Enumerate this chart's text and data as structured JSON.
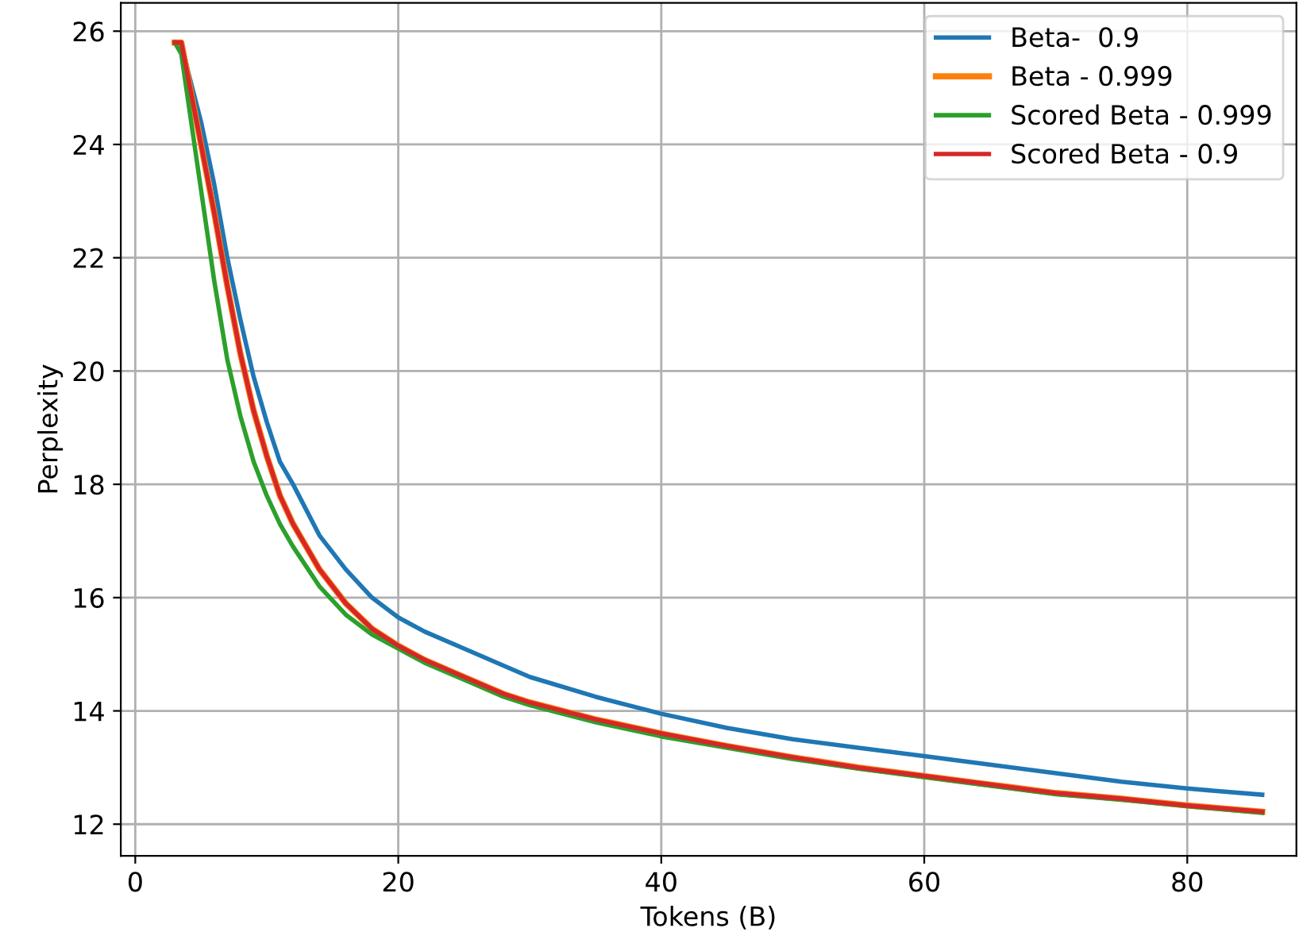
{
  "chart_data": {
    "type": "line",
    "xlabel": "Tokens (B)",
    "ylabel": "Perplexity",
    "x": [
      3,
      3.5,
      4,
      5,
      6,
      7,
      8,
      9,
      10,
      11,
      12,
      14,
      16,
      18,
      20,
      22,
      25,
      28,
      30,
      35,
      40,
      45,
      50,
      55,
      60,
      65,
      70,
      75,
      80,
      85.7
    ],
    "series": [
      {
        "name": "Beta-  0.9",
        "color": "#1f77b4",
        "values": [
          25.8,
          25.8,
          25.3,
          24.4,
          23.3,
          22.0,
          20.9,
          19.9,
          19.1,
          18.4,
          18.0,
          17.1,
          16.5,
          16.0,
          15.65,
          15.4,
          15.1,
          14.8,
          14.6,
          14.25,
          13.95,
          13.7,
          13.5,
          13.35,
          13.2,
          13.05,
          12.9,
          12.75,
          12.63,
          12.52
        ]
      },
      {
        "name": "Beta - 0.999",
        "color": "#ff7f0e",
        "values": [
          25.8,
          25.8,
          25.2,
          24.0,
          22.8,
          21.5,
          20.3,
          19.3,
          18.5,
          17.8,
          17.3,
          16.5,
          15.9,
          15.45,
          15.15,
          14.9,
          14.6,
          14.3,
          14.15,
          13.85,
          13.6,
          13.38,
          13.18,
          13.0,
          12.85,
          12.7,
          12.55,
          12.45,
          12.33,
          12.22
        ]
      },
      {
        "name": "Scored Beta - 0.999",
        "color": "#2ca02c",
        "values": [
          25.8,
          25.6,
          24.8,
          23.2,
          21.6,
          20.2,
          19.2,
          18.4,
          17.8,
          17.3,
          16.9,
          16.2,
          15.7,
          15.35,
          15.1,
          14.85,
          14.55,
          14.25,
          14.1,
          13.8,
          13.55,
          13.35,
          13.15,
          12.98,
          12.83,
          12.68,
          12.53,
          12.43,
          12.32,
          12.2
        ]
      },
      {
        "name": "Scored Beta - 0.9",
        "color": "#d62728",
        "values": [
          25.8,
          25.8,
          25.2,
          24.0,
          22.8,
          21.5,
          20.3,
          19.3,
          18.5,
          17.8,
          17.3,
          16.5,
          15.9,
          15.45,
          15.15,
          14.9,
          14.6,
          14.3,
          14.15,
          13.85,
          13.6,
          13.38,
          13.18,
          13.0,
          12.85,
          12.7,
          12.55,
          12.45,
          12.33,
          12.22
        ]
      }
    ],
    "xlim": [
      -1.1,
      88.3
    ],
    "ylim": [
      11.44,
      26.5
    ],
    "xticks": [
      0,
      20,
      40,
      60,
      80
    ],
    "yticks": [
      12,
      14,
      16,
      18,
      20,
      22,
      24,
      26
    ],
    "grid": true,
    "legend": "top right",
    "marker": "none",
    "line_style": "solid"
  }
}
